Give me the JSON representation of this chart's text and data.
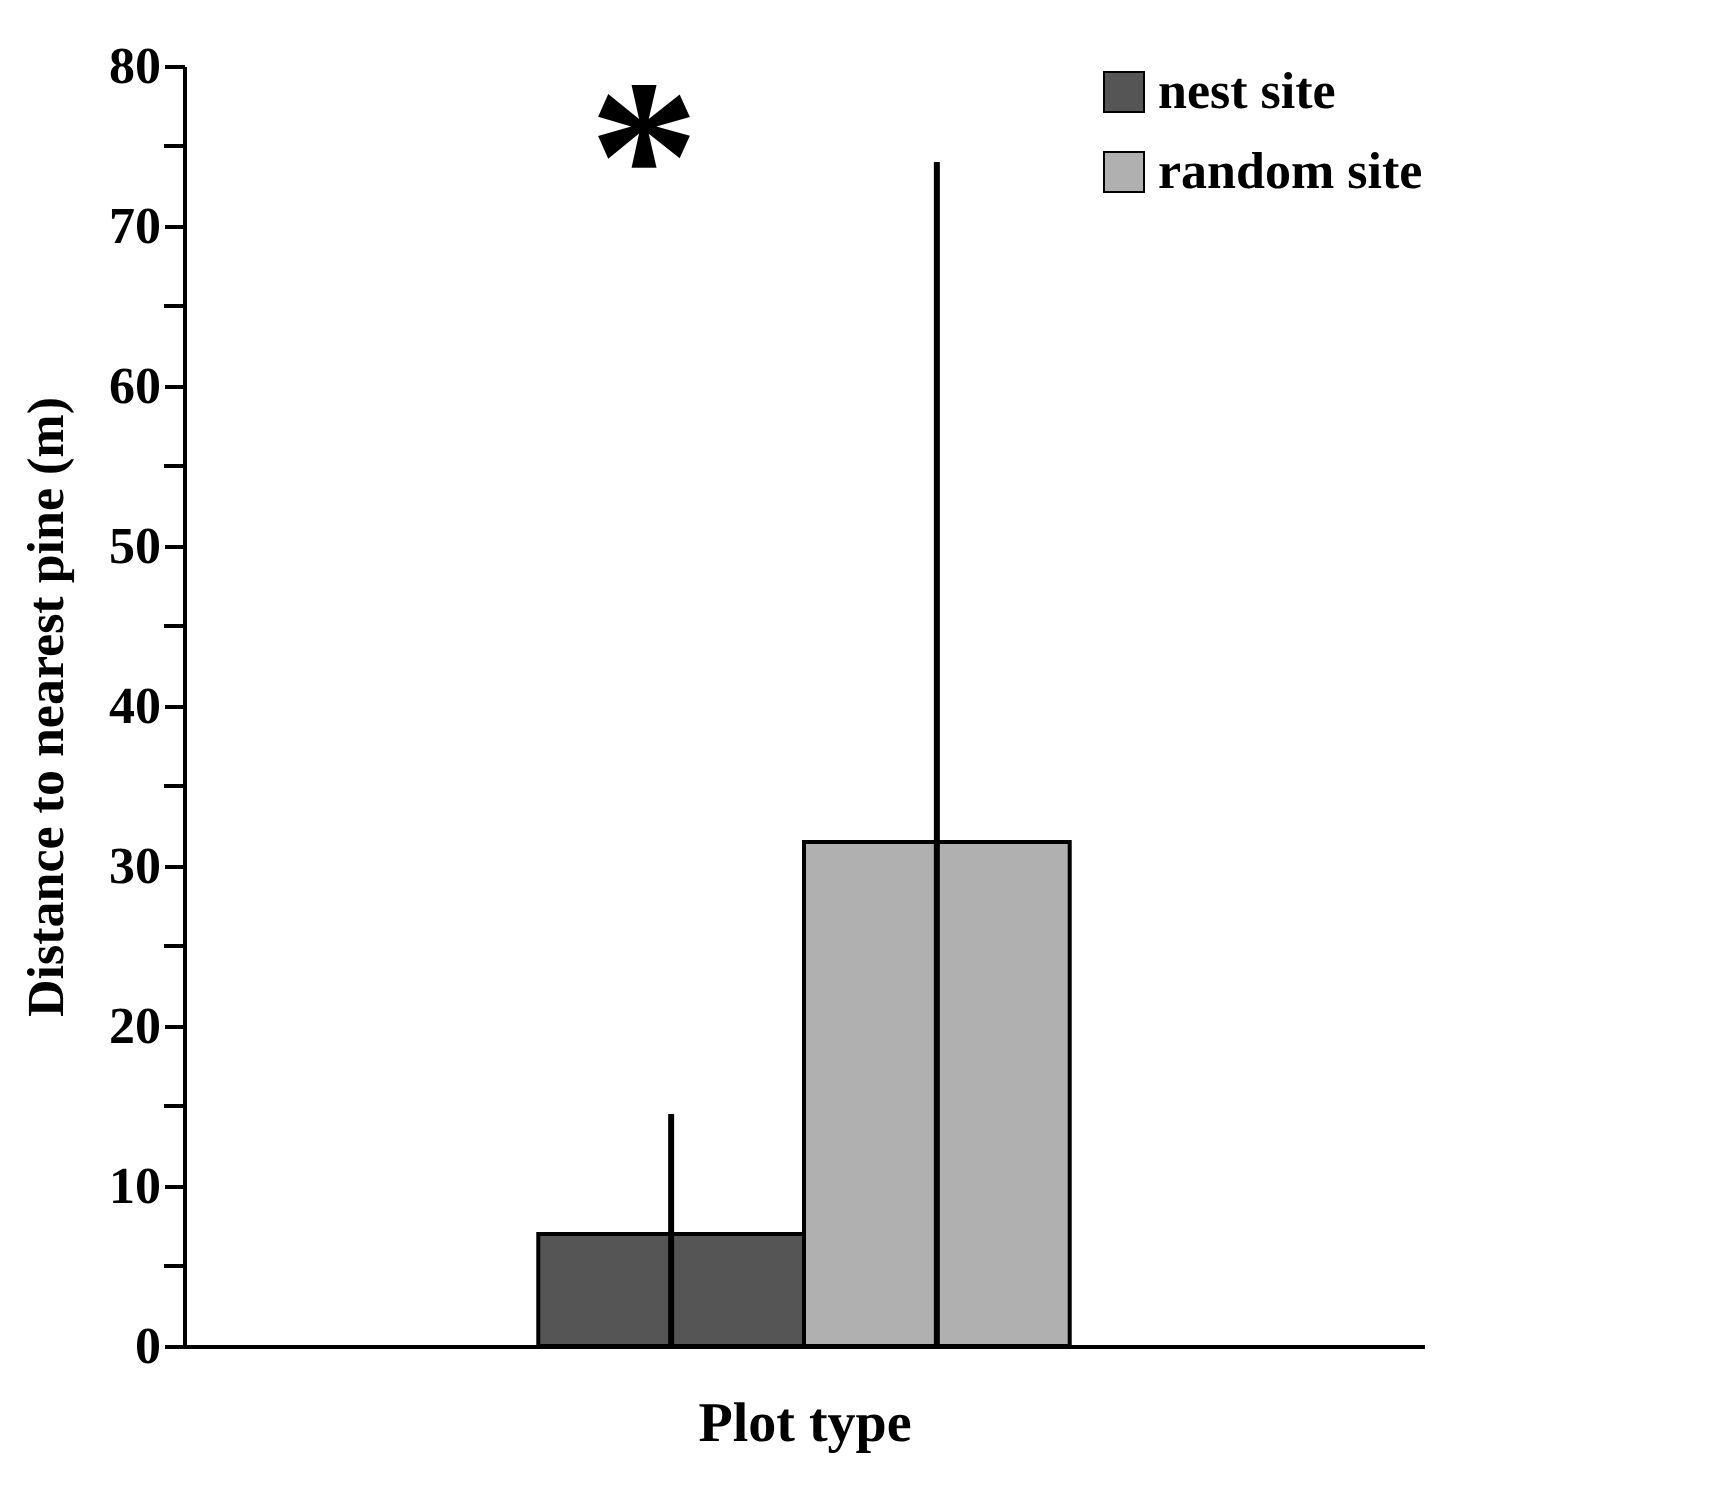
{
  "chart_data": {
    "type": "bar",
    "xlabel": "Plot type",
    "ylabel": "Distance to nearest pine (m)",
    "categories": [
      null
    ],
    "series": [
      {
        "name": "nest site",
        "color": "#555555",
        "values": [
          7
        ],
        "errors": [
          [
            0,
            14.5
          ]
        ]
      },
      {
        "name": "random site",
        "color": "#b0b0b0",
        "values": [
          31.5
        ],
        "errors": [
          [
            0,
            74
          ]
        ]
      }
    ],
    "ylim": [
      0,
      80
    ],
    "yticks": [
      0,
      {
        "value": 5,
        "label": null
      },
      10,
      {
        "value": 15,
        "label": null
      },
      20,
      {
        "value": 25,
        "label": null
      },
      30,
      {
        "value": 35,
        "label": null
      },
      40,
      {
        "value": 45,
        "label": null
      },
      50,
      {
        "value": 55,
        "label": null
      },
      60,
      {
        "value": 65,
        "label": null
      },
      70,
      {
        "value": 75,
        "label": null
      },
      80
    ],
    "annotations": [
      "*"
    ],
    "grid": false,
    "legend": "top right"
  }
}
